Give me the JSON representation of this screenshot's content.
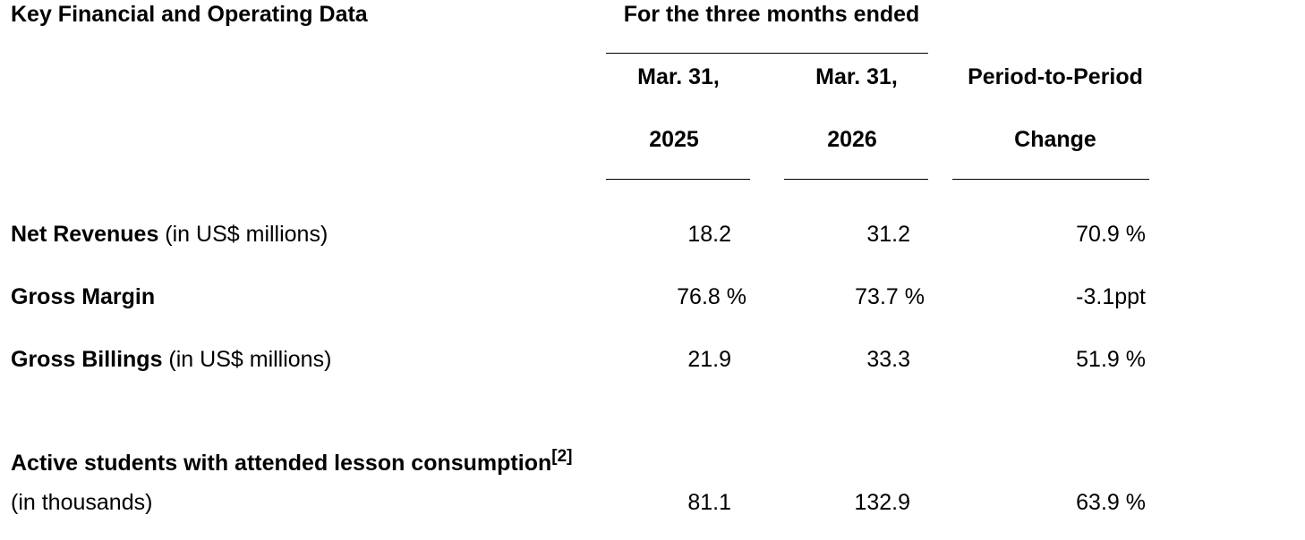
{
  "header": {
    "title": "Key Financial and Operating Data",
    "period_label": "For the three months ended",
    "col1_line1": "Mar. 31,",
    "col1_line2": "2025",
    "col2_line1": "Mar. 31,",
    "col2_line2": "2026",
    "col3_line1": "Period-to-Period",
    "col3_line2": "Change"
  },
  "rows": [
    {
      "label_bold": "Net Revenues",
      "label_normal": " (in US$ millions)",
      "v2025": "18.2",
      "v2026": "31.2",
      "change": "70.9 %"
    },
    {
      "label_bold": "Gross Margin",
      "label_normal": "",
      "v2025": "76.8 %",
      "v2026": "73.7 %",
      "change": "-3.1ppt"
    },
    {
      "label_bold": "Gross Billings",
      "label_normal": " (in US$ millions)",
      "v2025": "21.9",
      "v2026": "33.3",
      "change": "51.9 %"
    },
    {
      "label_bold": "Active students with attended lesson consumption",
      "footnote": "[2]",
      "label_line2": "(in thousands)",
      "v2025": "81.1",
      "v2026": "132.9",
      "change": "63.9 %"
    }
  ]
}
